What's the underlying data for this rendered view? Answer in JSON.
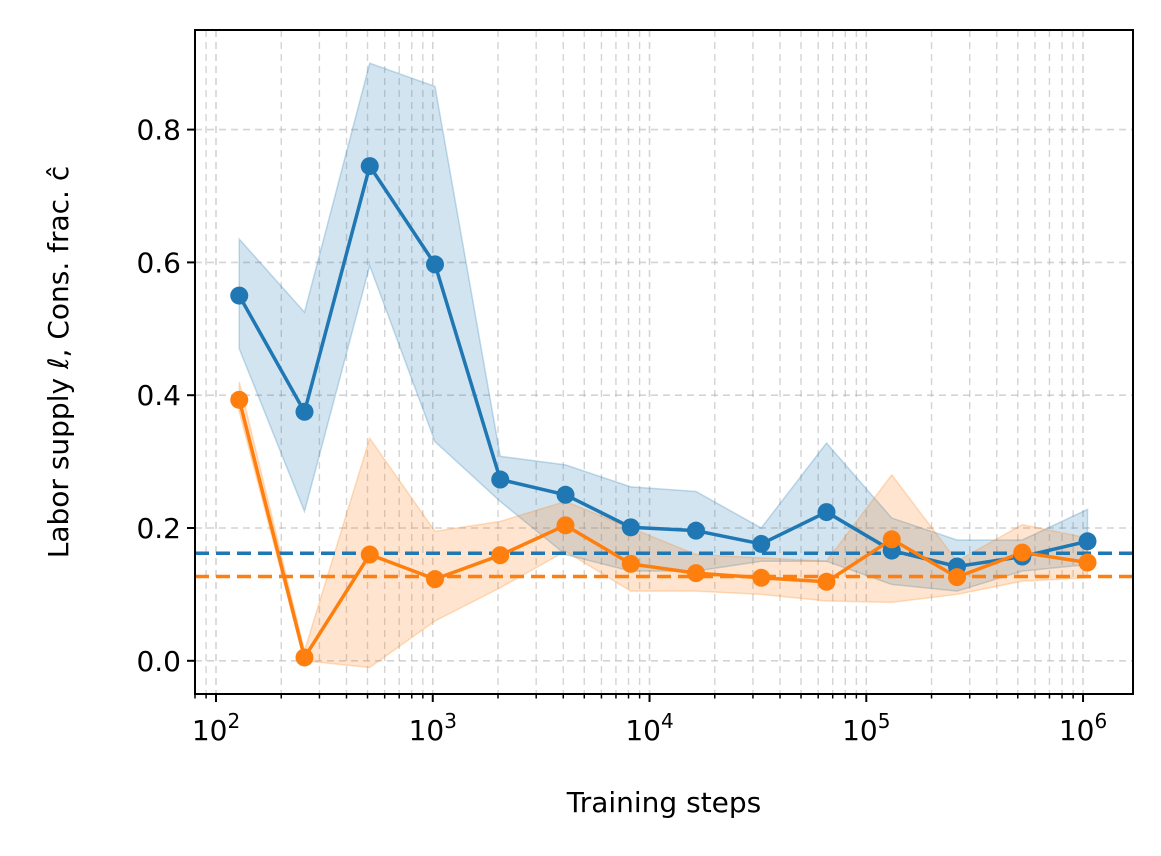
{
  "chart_data": {
    "type": "line",
    "title": "",
    "xlabel": "Training steps",
    "ylabel": "Labor supply ℓ, Cons. frac. ĉ",
    "xscale": "log",
    "xlim": [
      80,
      1700000
    ],
    "ylim": [
      -0.05,
      0.95
    ],
    "grid": true,
    "x": [
      128,
      256,
      512,
      1024,
      2048,
      4096,
      8192,
      16384,
      32768,
      65536,
      131072,
      262144,
      524288,
      1048576
    ],
    "x_ticks": [
      {
        "value": 100,
        "base": "10",
        "exp": "2"
      },
      {
        "value": 1000,
        "base": "10",
        "exp": "3"
      },
      {
        "value": 10000,
        "base": "10",
        "exp": "4"
      },
      {
        "value": 100000,
        "base": "10",
        "exp": "5"
      },
      {
        "value": 1000000,
        "base": "10",
        "exp": "6"
      }
    ],
    "y_ticks": [
      {
        "value": 0.0,
        "label": "0.0"
      },
      {
        "value": 0.2,
        "label": "0.2"
      },
      {
        "value": 0.4,
        "label": "0.4"
      },
      {
        "value": 0.6,
        "label": "0.6"
      },
      {
        "value": 0.8,
        "label": "0.8"
      }
    ],
    "series": [
      {
        "name": "blue",
        "color": "#1f77b4",
        "values": [
          0.55,
          0.375,
          0.745,
          0.597,
          0.273,
          0.25,
          0.201,
          0.196,
          0.176,
          0.224,
          0.166,
          0.142,
          0.157,
          0.18
        ],
        "lower": [
          0.47,
          0.225,
          0.595,
          0.33,
          0.24,
          0.16,
          0.135,
          0.135,
          0.15,
          0.15,
          0.115,
          0.105,
          0.135,
          0.145
        ],
        "upper": [
          0.635,
          0.525,
          0.9,
          0.865,
          0.308,
          0.295,
          0.262,
          0.255,
          0.2,
          0.328,
          0.215,
          0.182,
          0.182,
          0.228
        ],
        "reference_line": 0.162
      },
      {
        "name": "orange",
        "color": "#ff7f0e",
        "values": [
          0.393,
          0.005,
          0.16,
          0.123,
          0.159,
          0.204,
          0.146,
          0.132,
          0.125,
          0.119,
          0.183,
          0.126,
          0.163,
          0.148
        ],
        "lower": [
          0.375,
          0.0,
          -0.01,
          0.06,
          0.11,
          0.165,
          0.105,
          0.105,
          0.1,
          0.09,
          0.088,
          0.1,
          0.12,
          0.125
        ],
        "upper": [
          0.42,
          0.015,
          0.335,
          0.195,
          0.21,
          0.24,
          0.2,
          0.16,
          0.155,
          0.15,
          0.28,
          0.15,
          0.205,
          0.185
        ],
        "reference_line": 0.127
      }
    ]
  }
}
